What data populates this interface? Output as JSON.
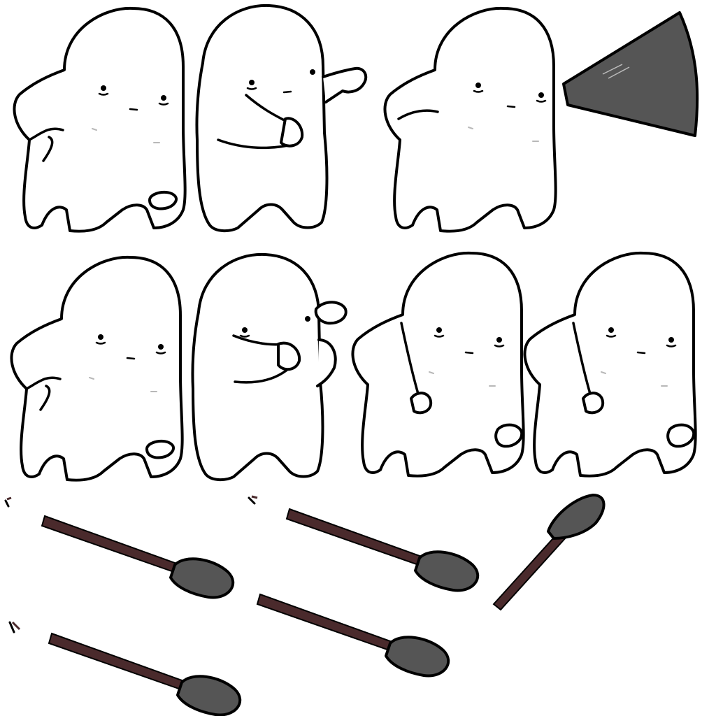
{
  "sheet": {
    "background": "#ffffff",
    "colors": {
      "outline": "#000000",
      "body_fill": "#ffffff",
      "blade_fill": "#555555",
      "handle_fill": "#4a2a2c",
      "blush": "#b8b8b8"
    },
    "sprites": {
      "characters": [
        {
          "pose": "idle-hand-on-hip"
        },
        {
          "pose": "pointing-right"
        },
        {
          "pose": "shouting-with-megaphone-icon"
        },
        {
          "pose": "idle-hand-on-hip"
        },
        {
          "pose": "fist-raised"
        },
        {
          "pose": "arms-down"
        },
        {
          "pose": "arms-down"
        }
      ],
      "shovels": [
        {
          "orientation": "angled-down-right"
        },
        {
          "orientation": "angled-down-right"
        },
        {
          "orientation": "diagonal-up-right"
        },
        {
          "orientation": "angled-down-right"
        },
        {
          "orientation": "angled-down-right"
        }
      ],
      "megaphone_icon": "megaphone-cone-icon"
    }
  }
}
